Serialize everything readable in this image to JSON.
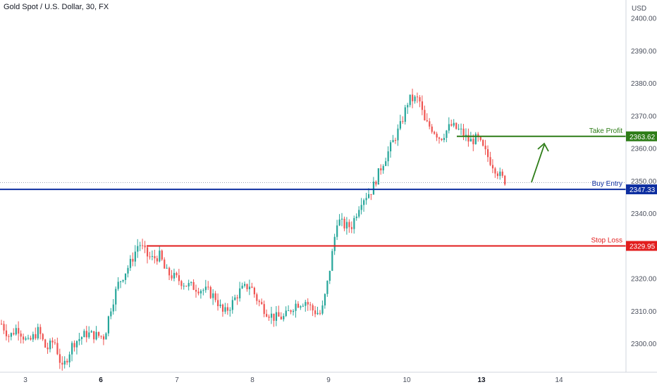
{
  "symbol_title": "Gold Spot / U.S. Dollar, 30, FX",
  "currency": "USD",
  "colors": {
    "up": "#26a69a",
    "down": "#ef5350",
    "take_profit": "#2e7d18",
    "buy_entry": "#0d2ea0",
    "stop_loss": "#e21d1d",
    "axis_text": "#4a4f5c",
    "last_price_dotted": "#9aa4b2"
  },
  "levels": {
    "take_profit": {
      "label": "Take Profit",
      "price": 2363.62,
      "price_text": "2363.62"
    },
    "buy_entry": {
      "label": "Buy Entry",
      "price": 2347.33,
      "price_text": "2347.33"
    },
    "stop_loss": {
      "label": "Stop Loss",
      "price": 2329.95,
      "price_text": "2329.95"
    }
  },
  "chart_data": {
    "type": "candlestick",
    "title": "Gold Spot / U.S. Dollar, 30, FX",
    "y_ticks": [
      "2300.00",
      "2310.00",
      "2320.00",
      "2330.00",
      "2340.00",
      "2350.00",
      "2360.00",
      "2370.00",
      "2380.00",
      "2390.00",
      "2400.00"
    ],
    "x_ticks": [
      {
        "label": "3",
        "bold": false,
        "day": 3
      },
      {
        "label": "6",
        "bold": true,
        "day": 6
      },
      {
        "label": "7",
        "bold": false,
        "day": 7
      },
      {
        "label": "8",
        "bold": false,
        "day": 8
      },
      {
        "label": "9",
        "bold": false,
        "day": 9
      },
      {
        "label": "10",
        "bold": false,
        "day": 10
      },
      {
        "label": "13",
        "bold": true,
        "day": 13
      },
      {
        "label": "14",
        "bold": false,
        "day": 14
      }
    ],
    "ylim": [
      2292,
      2408
    ],
    "price_path": [
      [
        0.0,
        2306
      ],
      [
        0.15,
        2302
      ],
      [
        0.3,
        2305
      ],
      [
        0.5,
        2300
      ],
      [
        0.7,
        2304
      ],
      [
        0.85,
        2298
      ],
      [
        1.0,
        2301
      ],
      [
        1.15,
        2292
      ],
      [
        1.35,
        2300
      ],
      [
        1.6,
        2303
      ],
      [
        1.95,
        2302
      ],
      [
        2.05,
        2310
      ],
      [
        2.2,
        2318
      ],
      [
        2.45,
        2325
      ],
      [
        2.6,
        2331
      ],
      [
        2.75,
        2327
      ],
      [
        2.85,
        2326
      ],
      [
        3.0,
        2327
      ],
      [
        3.1,
        2322
      ],
      [
        3.3,
        2320
      ],
      [
        3.5,
        2318
      ],
      [
        3.7,
        2317
      ],
      [
        3.9,
        2316
      ],
      [
        4.05,
        2314
      ],
      [
        4.2,
        2309
      ],
      [
        4.35,
        2312
      ],
      [
        4.5,
        2316
      ],
      [
        4.7,
        2318
      ],
      [
        4.85,
        2313
      ],
      [
        5.0,
        2310
      ],
      [
        5.15,
        2308
      ],
      [
        5.35,
        2308
      ],
      [
        5.55,
        2312
      ],
      [
        5.75,
        2313
      ],
      [
        5.9,
        2310
      ],
      [
        6.05,
        2309
      ],
      [
        6.15,
        2317
      ],
      [
        6.25,
        2327
      ],
      [
        6.35,
        2338
      ],
      [
        6.5,
        2336
      ],
      [
        6.62,
        2336
      ],
      [
        6.8,
        2344
      ],
      [
        7.0,
        2347
      ],
      [
        7.2,
        2355
      ],
      [
        7.35,
        2360
      ],
      [
        7.55,
        2367
      ],
      [
        7.7,
        2375
      ],
      [
        7.9,
        2375
      ],
      [
        8.0,
        2368
      ],
      [
        8.15,
        2366
      ],
      [
        8.3,
        2363
      ],
      [
        8.5,
        2367
      ],
      [
        8.7,
        2365
      ],
      [
        8.85,
        2362
      ],
      [
        9.0,
        2363
      ],
      [
        9.1,
        2360
      ],
      [
        9.25,
        2356
      ],
      [
        9.45,
        2351
      ],
      [
        9.6,
        2349
      ]
    ]
  }
}
